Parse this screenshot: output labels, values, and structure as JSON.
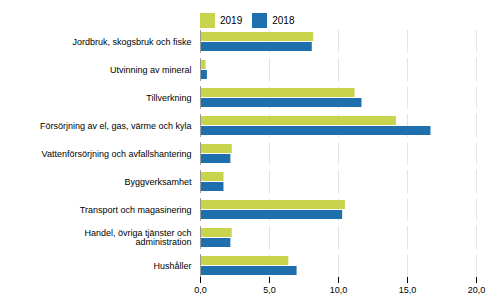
{
  "chart_data": {
    "type": "bar",
    "orientation": "horizontal",
    "categories": [
      "Hushåller",
      "Handel, övriga tjänster och\nadministration",
      "Transport och magasinering",
      "Byggverksamhet",
      "Vattenförsörjning och avfallshantering",
      "Försörjning av el, gas, värme och kyla",
      "Tillverkning",
      "Utvinning av mineral",
      "Jordbruk, skogsbruk och fiske"
    ],
    "series": [
      {
        "name": "2019",
        "color": "#c8d44e",
        "values": [
          6.4,
          2.3,
          10.5,
          1.7,
          2.3,
          14.2,
          11.2,
          0.4,
          8.2
        ]
      },
      {
        "name": "2018",
        "color": "#1f6fad",
        "values": [
          7.0,
          2.2,
          10.3,
          1.7,
          2.2,
          16.7,
          11.7,
          0.5,
          8.1
        ]
      }
    ],
    "xlim": [
      0,
      20
    ],
    "xticks": [
      {
        "value": 0,
        "label": "0,0"
      },
      {
        "value": 5,
        "label": "5,0"
      },
      {
        "value": 10,
        "label": "10,0"
      },
      {
        "value": 15,
        "label": "15,0"
      },
      {
        "value": 20,
        "label": "20,0"
      }
    ],
    "grid": true,
    "legend": "top"
  }
}
